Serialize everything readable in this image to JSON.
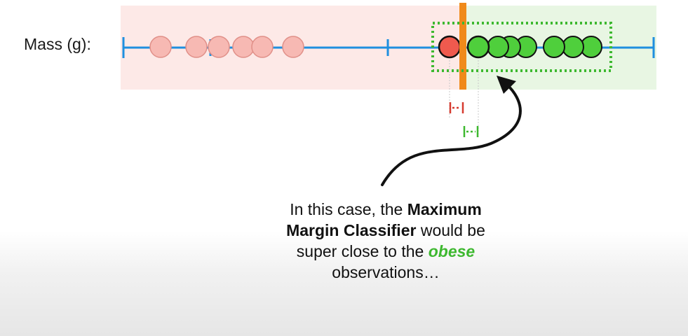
{
  "axis": {
    "label": "Mass (g):"
  },
  "caption": {
    "line1_pre": "In this case, the ",
    "line1_bold": "Maximum",
    "line2_bold": "Margin Classifier",
    "line2_post": " would be",
    "line3_pre": "super close to the ",
    "line3_highlight": "obese",
    "line4": "observations…"
  },
  "observations": {
    "not_obese_count": 7,
    "obese_count": 7
  },
  "colors": {
    "axis": "#1f8fdf",
    "not_obese_fill": "#f7b9b3",
    "not_obese_stroke": "#e08f88",
    "misclassified_fill": "#ef5a4e",
    "obese_fill": "#4fcf3c",
    "threshold": "#f08a1a",
    "margin_box": "#3db82f",
    "margin_red": "#d63a2f",
    "region_red": "#fde9e7",
    "region_green": "#e8f6e3",
    "caption_highlight": "#3db82f"
  }
}
